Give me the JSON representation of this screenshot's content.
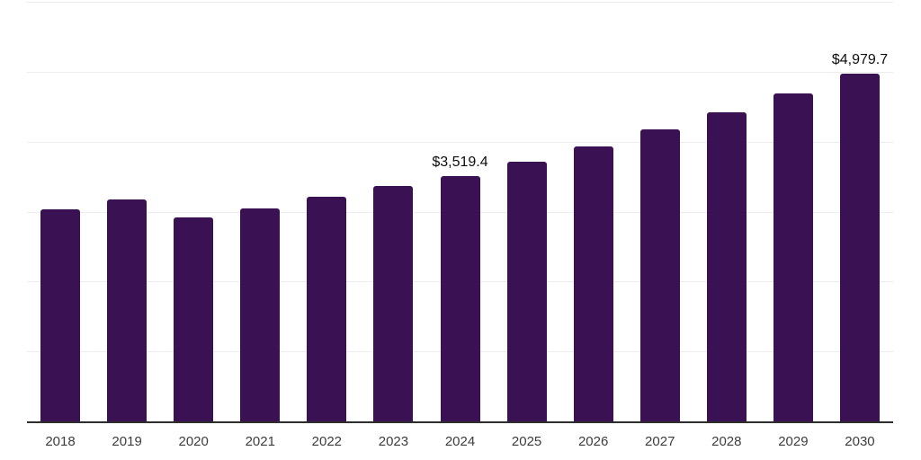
{
  "chart_data": {
    "type": "bar",
    "categories": [
      "2018",
      "2019",
      "2020",
      "2021",
      "2022",
      "2023",
      "2024",
      "2025",
      "2026",
      "2027",
      "2028",
      "2029",
      "2030"
    ],
    "values": [
      3048,
      3189,
      2927,
      3061,
      3219,
      3383,
      3519.4,
      3728.8,
      3950.7,
      4185.7,
      4434.7,
      4698.5,
      4979.7
    ],
    "point_labels": [
      "",
      "",
      "",
      "",
      "",
      "",
      "$3,519.4",
      "",
      "",
      "",
      "",
      "",
      "$4,979.7"
    ],
    "ylim": [
      0,
      6000
    ],
    "grid_step": 1000,
    "grid": true,
    "legend_position": "none",
    "colors": {
      "bar": "#3A1253",
      "gridline": "#EDEDED",
      "axis_line": "#2E2E2E",
      "tick_label": "#3D3D3D",
      "data_label": "#0D0D0D",
      "background": "#FFFFFF"
    }
  }
}
